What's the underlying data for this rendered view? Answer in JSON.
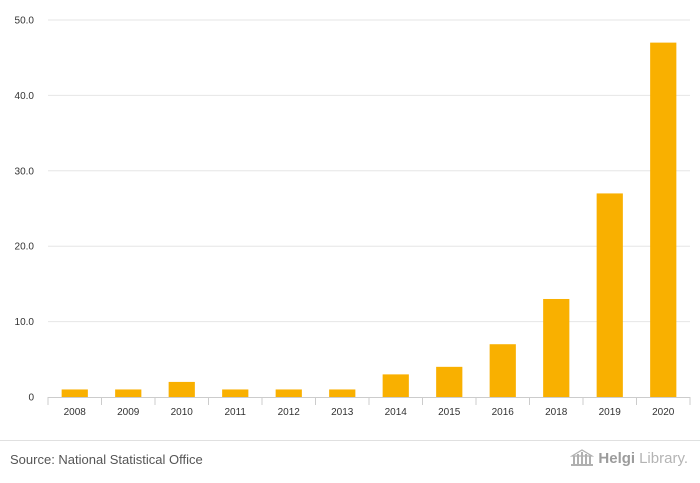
{
  "chart_data": {
    "type": "bar",
    "categories": [
      "2008",
      "2009",
      "2010",
      "2011",
      "2012",
      "2013",
      "2014",
      "2015",
      "2016",
      "2018",
      "2019",
      "2020"
    ],
    "values": [
      1,
      1,
      2,
      1,
      1,
      1,
      3,
      4,
      7,
      13,
      27,
      47
    ],
    "title": "",
    "xlabel": "",
    "ylabel": "",
    "ylim": [
      0,
      50
    ],
    "yticks": [
      "0",
      "10.0",
      "20.0",
      "30.0",
      "40.0",
      "50.0"
    ],
    "ytick_values": [
      0,
      10,
      20,
      30,
      40,
      50
    ],
    "grid": true,
    "legend": "none"
  },
  "colors": {
    "bar": "#f9b000"
  },
  "footer": {
    "source": "Source: National Statistical Office",
    "logo_bold": "Helgi",
    "logo_light": "Library."
  }
}
